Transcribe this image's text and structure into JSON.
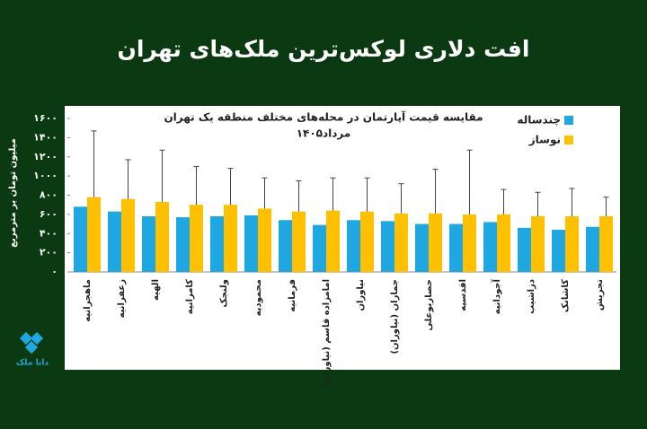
{
  "header": {
    "title": "افت دلاری لوکس‌ترین ملک‌های تهران"
  },
  "logo": "دانا ملک",
  "chart_data": {
    "type": "bar",
    "title": "مقایسه قیمت آپارتمان در محله‌های مختلف منطقه یک تهران",
    "subtitle": "مرداد۱۴۰۵",
    "ylabel": "میلیون تومان بر مترمربع",
    "categories": [
      "ماهجرانیه",
      "زعفرانیه",
      "الهیه",
      "کامرانیه",
      "ولنجک",
      "محمودیه",
      "فرمانیه",
      "امامزاده قاسم (نیاوران)",
      "نیاوران",
      "جماران (نیاوران)",
      "حصاربوعلی",
      "اقدسیه",
      "آجودانیه",
      "دزاشیب",
      "کاشانک",
      "تجریش"
    ],
    "series": [
      {
        "name": "چندساله",
        "color": "#1ea7e1",
        "values": [
          680,
          630,
          580,
          570,
          580,
          590,
          540,
          490,
          540,
          530,
          500,
          500,
          520,
          460,
          440,
          470
        ]
      },
      {
        "name": "نوساز",
        "color": "#ffc000",
        "values": [
          780,
          760,
          730,
          700,
          700,
          660,
          630,
          640,
          630,
          610,
          610,
          600,
          600,
          580,
          580,
          580
        ],
        "errors": [
          690,
          410,
          540,
          400,
          380,
          320,
          320,
          340,
          350,
          310,
          460,
          670,
          260,
          250,
          290,
          200
        ]
      }
    ],
    "ylim": [
      0,
      1600
    ],
    "yticks": [
      {
        "value": 0,
        "label": "۰"
      },
      {
        "value": 200,
        "label": "۲۰۰"
      },
      {
        "value": 400,
        "label": "۴۰۰"
      },
      {
        "value": 600,
        "label": "۶۰۰"
      },
      {
        "value": 800,
        "label": "۸۰۰"
      },
      {
        "value": 1000,
        "label": "۱۰۰۰"
      },
      {
        "value": 1200,
        "label": "۱۲۰۰"
      },
      {
        "value": 1400,
        "label": "۱۴۰۰"
      },
      {
        "value": 1600,
        "label": "۱۶۰۰"
      }
    ],
    "legend": "top-right"
  }
}
